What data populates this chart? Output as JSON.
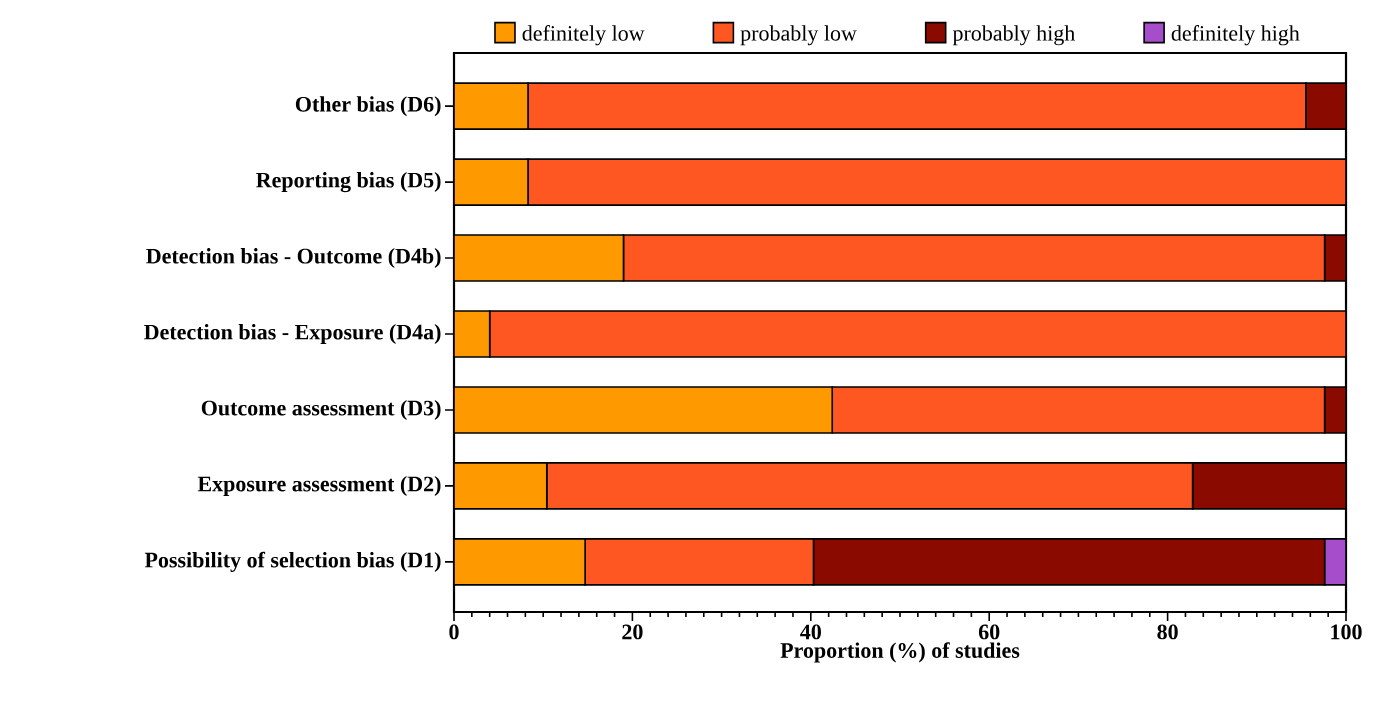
{
  "chart_data": {
    "type": "bar",
    "orientation": "horizontal",
    "stacked": true,
    "xlabel": "Proportion (%) of studies",
    "categories": [
      "Other bias (D6)",
      "Reporting bias (D5)",
      "Detection bias - Outcome (D4b)",
      "Detection bias - Exposure (D4a)",
      "Outcome assessment (D3)",
      "Exposure assessment (D2)",
      "Possibility of selection bias (D1)"
    ],
    "series": [
      {
        "name": "definitely low",
        "color": "#ff9900",
        "values": [
          8.3,
          8.3,
          19.0,
          4.0,
          42.4,
          10.4,
          14.7
        ]
      },
      {
        "name": "probably low",
        "color": "#ff5722",
        "values": [
          87.2,
          91.7,
          78.6,
          96.0,
          55.2,
          72.4,
          25.6
        ]
      },
      {
        "name": "probably high",
        "color": "#8b0a00",
        "values": [
          4.5,
          0,
          2.4,
          0,
          2.4,
          17.2,
          57.3
        ]
      },
      {
        "name": "definitely high",
        "color": "#a64dcc",
        "values": [
          0,
          0,
          0,
          0,
          0,
          0,
          2.4
        ]
      }
    ],
    "xlim": [
      0,
      100
    ],
    "xticks": [
      0,
      20,
      40,
      60,
      80,
      100
    ],
    "grid": false,
    "legend": "top"
  }
}
